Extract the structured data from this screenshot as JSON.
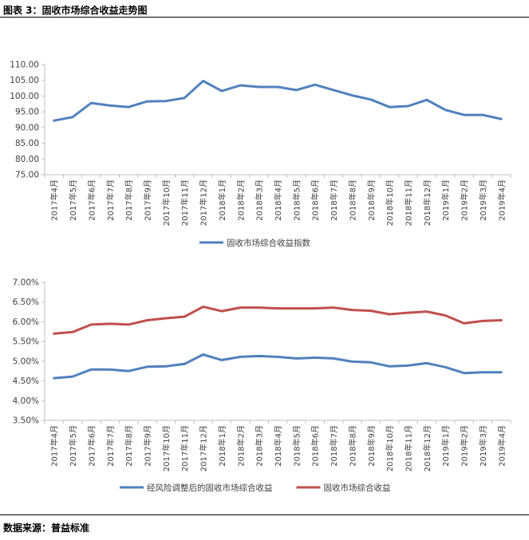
{
  "header": {
    "title": "图表 3：固收市场综合收益走势图"
  },
  "footer": {
    "source": "数据来源：普益标准"
  },
  "colors": {
    "blue": "#4f81bd",
    "red": "#c0504d",
    "axis": "#bfbfbf",
    "text": "#404040"
  },
  "chart_data": [
    {
      "type": "line",
      "title": "",
      "categories": [
        "2017年4月",
        "2017年5月",
        "2017年6月",
        "2017年7月",
        "2017年8月",
        "2017年9月",
        "2017年10月",
        "2017年11月",
        "2017年12月",
        "2018年1月",
        "2018年2月",
        "2018年3月",
        "2018年4月",
        "2018年5月",
        "2018年6月",
        "2018年7月",
        "2018年8月",
        "2018年9月",
        "2018年10月",
        "2018年11月",
        "2018年12月",
        "2019年1月",
        "2019年2月",
        "2019年3月",
        "2019年4月"
      ],
      "ylim": [
        75,
        110
      ],
      "yticks": [
        75,
        80,
        85,
        90,
        95,
        100,
        105,
        110
      ],
      "ytick_labels": [
        "75.00",
        "80.00",
        "85.00",
        "90.00",
        "95.00",
        "100.00",
        "105.00",
        "110.00"
      ],
      "series": [
        {
          "name": "固收市场综合收益指数",
          "color": "#4f81bd",
          "values": [
            92.2,
            93.3,
            97.8,
            97.0,
            96.5,
            98.3,
            98.4,
            99.4,
            104.8,
            101.6,
            103.4,
            102.9,
            102.9,
            101.9,
            103.6,
            101.9,
            100.2,
            98.9,
            96.5,
            96.8,
            98.8,
            95.6,
            94.0,
            94.0,
            92.7
          ]
        }
      ]
    },
    {
      "type": "line",
      "title": "",
      "categories": [
        "2017年4月",
        "2017年5月",
        "2017年6月",
        "2017年7月",
        "2017年8月",
        "2017年9月",
        "2017年10月",
        "2017年11月",
        "2017年12月",
        "2018年1月",
        "2018年2月",
        "2018年3月",
        "2018年4月",
        "2018年5月",
        "2018年6月",
        "2018年7月",
        "2018年8月",
        "2018年9月",
        "2018年10月",
        "2018年11月",
        "2018年12月",
        "2019年1月",
        "2019年2月",
        "2019年3月",
        "2019年4月"
      ],
      "ylim": [
        3.5,
        7.0
      ],
      "yticks": [
        3.5,
        4.0,
        4.5,
        5.0,
        5.5,
        6.0,
        6.5,
        7.0
      ],
      "ytick_labels": [
        "3.50%",
        "4.00%",
        "4.50%",
        "5.00%",
        "5.50%",
        "6.00%",
        "6.50%",
        "7.00%"
      ],
      "series": [
        {
          "name": "经风险调整后的固收市场综合收益",
          "color": "#4f81bd",
          "values": [
            4.57,
            4.61,
            4.79,
            4.79,
            4.75,
            4.86,
            4.87,
            4.93,
            5.17,
            5.03,
            5.11,
            5.13,
            5.11,
            5.07,
            5.09,
            5.07,
            4.99,
            4.97,
            4.87,
            4.89,
            4.95,
            4.85,
            4.7,
            4.72,
            4.72
          ]
        },
        {
          "name": "固收市场综合收益",
          "color": "#c0504d",
          "values": [
            5.7,
            5.74,
            5.93,
            5.95,
            5.93,
            6.04,
            6.09,
            6.13,
            6.38,
            6.27,
            6.36,
            6.36,
            6.34,
            6.34,
            6.34,
            6.36,
            6.3,
            6.28,
            6.19,
            6.23,
            6.26,
            6.16,
            5.96,
            6.02,
            6.04
          ]
        }
      ]
    }
  ]
}
